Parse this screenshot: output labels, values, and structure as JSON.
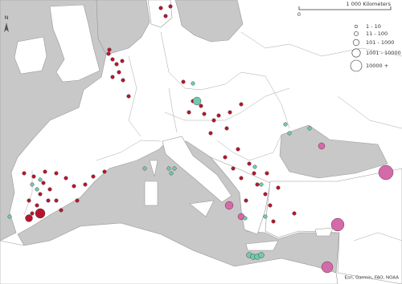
{
  "north_label": "N",
  "scale": {
    "start": "0",
    "end": "1 000 Kilometers"
  },
  "legend": {
    "items": [
      "1 - 10",
      "11 - 100",
      "101 - 1000",
      "1001 - 10000",
      "10000 +"
    ]
  },
  "attribution": "Esri, Garmin, FAO, NOAA"
}
